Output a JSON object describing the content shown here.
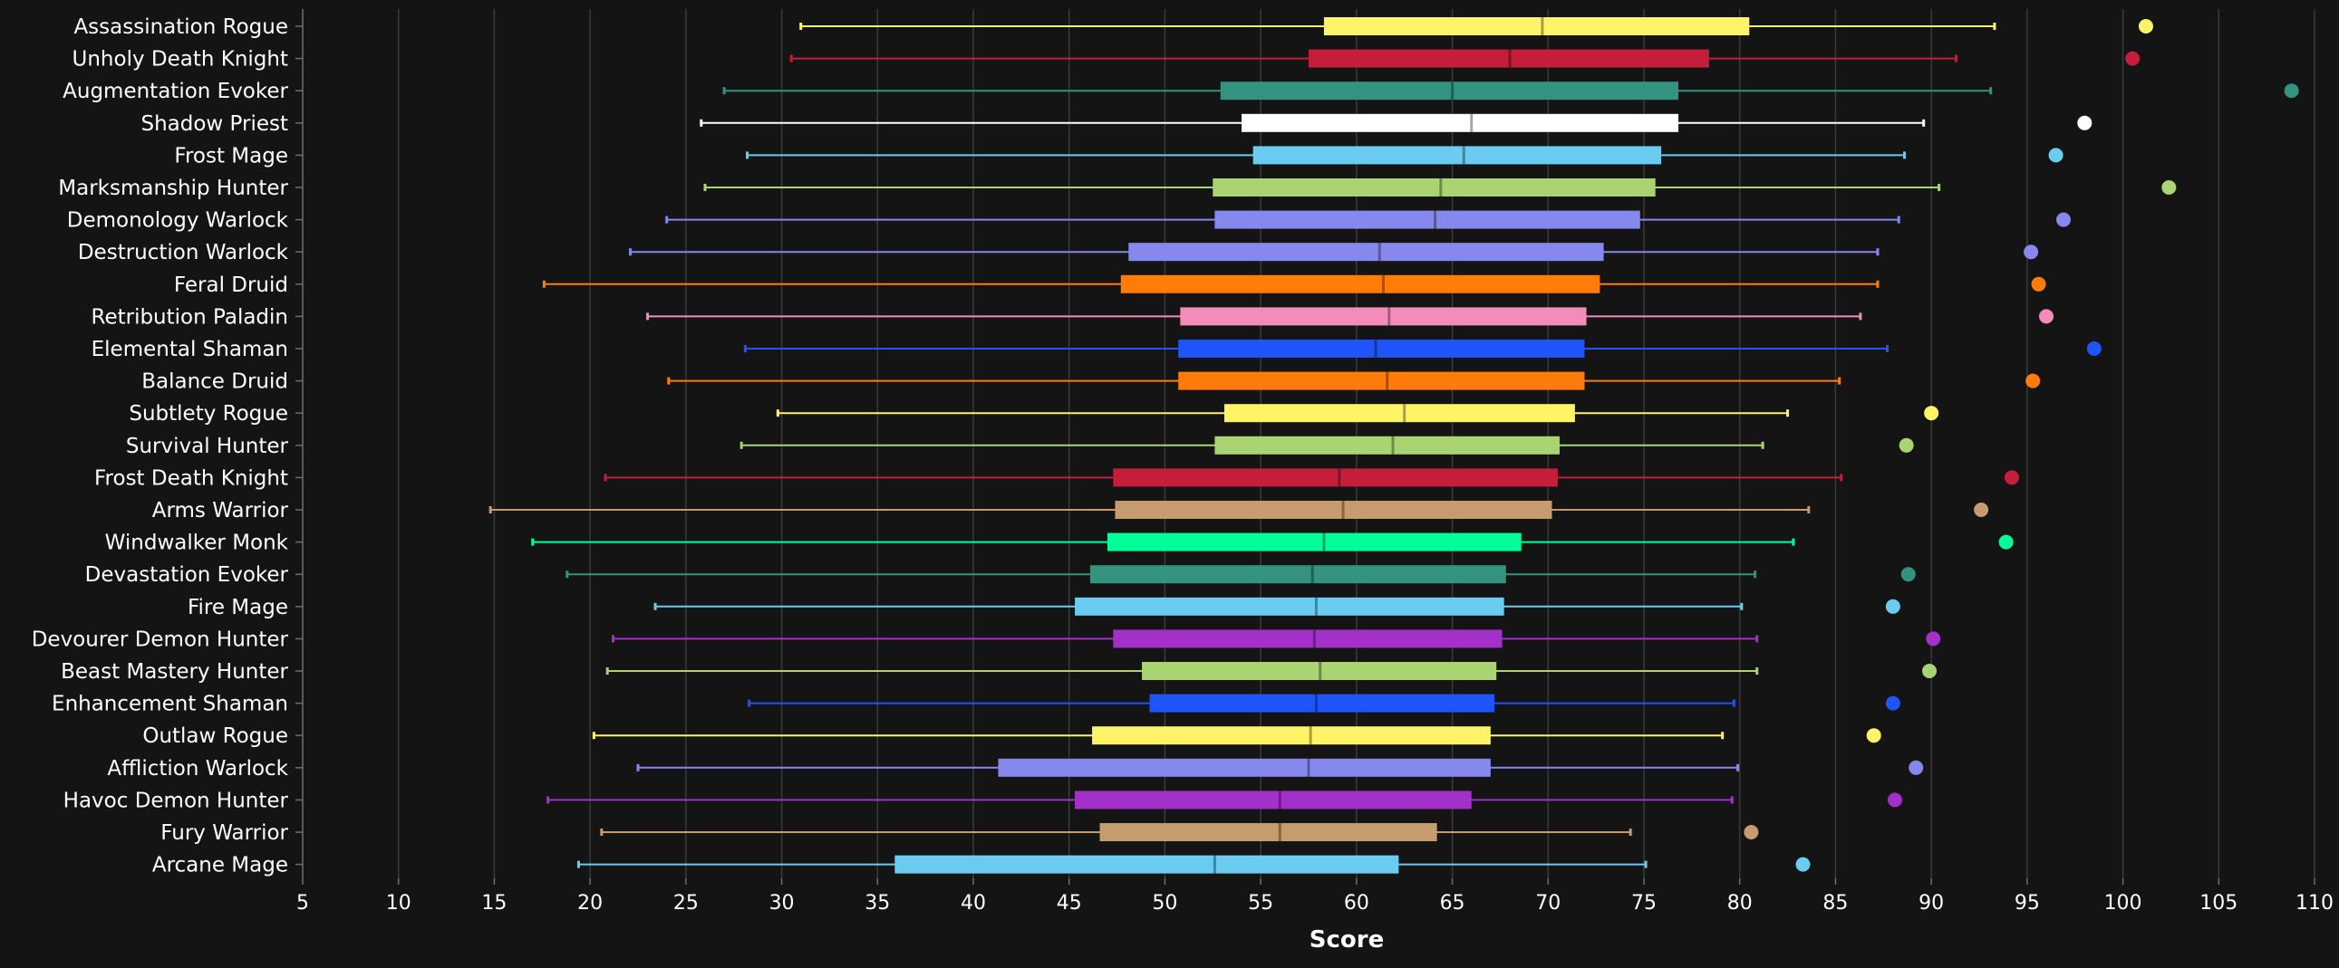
{
  "chart_data": {
    "type": "boxplot",
    "title": "",
    "xlabel": "Score",
    "ylabel": "",
    "xlim": [
      5,
      110
    ],
    "xticks": [
      5,
      10,
      15,
      20,
      25,
      30,
      35,
      40,
      45,
      50,
      55,
      60,
      65,
      70,
      75,
      80,
      85,
      90,
      95,
      100,
      105,
      110
    ],
    "grid": "vertical",
    "legend": "none",
    "series": [
      {
        "name": "Assassination Rogue",
        "color": "#FFF468",
        "min": 31.0,
        "q1": 58.3,
        "median": 69.7,
        "q3": 80.5,
        "max": 93.3,
        "outlier": 101.2
      },
      {
        "name": "Unholy Death Knight",
        "color": "#C41E3A",
        "min": 30.5,
        "q1": 57.5,
        "median": 68.0,
        "q3": 78.4,
        "max": 91.3,
        "outlier": 100.5
      },
      {
        "name": "Augmentation Evoker",
        "color": "#33937F",
        "min": 27.0,
        "q1": 52.9,
        "median": 65.0,
        "q3": 76.8,
        "max": 93.1,
        "outlier": 108.8
      },
      {
        "name": "Shadow Priest",
        "color": "#FFFFFF",
        "min": 25.8,
        "q1": 54.0,
        "median": 66.0,
        "q3": 76.8,
        "max": 89.6,
        "outlier": 98.0
      },
      {
        "name": "Frost Mage",
        "color": "#69CCF0",
        "min": 28.2,
        "q1": 54.6,
        "median": 65.6,
        "q3": 75.9,
        "max": 88.6,
        "outlier": 96.5
      },
      {
        "name": "Marksmanship Hunter",
        "color": "#AAD372",
        "min": 26.0,
        "q1": 52.5,
        "median": 64.4,
        "q3": 75.6,
        "max": 90.4,
        "outlier": 102.4
      },
      {
        "name": "Demonology Warlock",
        "color": "#8788EE",
        "min": 24.0,
        "q1": 52.6,
        "median": 64.1,
        "q3": 74.8,
        "max": 88.3,
        "outlier": 96.9
      },
      {
        "name": "Destruction Warlock",
        "color": "#8788EE",
        "min": 22.1,
        "q1": 48.1,
        "median": 61.2,
        "q3": 72.9,
        "max": 87.2,
        "outlier": 95.2
      },
      {
        "name": "Feral Druid",
        "color": "#FF7C0A",
        "min": 17.6,
        "q1": 47.7,
        "median": 61.4,
        "q3": 72.7,
        "max": 87.2,
        "outlier": 95.6
      },
      {
        "name": "Retribution Paladin",
        "color": "#F48CBA",
        "min": 23.0,
        "q1": 50.8,
        "median": 61.7,
        "q3": 72.0,
        "max": 86.3,
        "outlier": 96.0
      },
      {
        "name": "Elemental Shaman",
        "color": "#1F55F8",
        "min": 28.1,
        "q1": 50.7,
        "median": 61.0,
        "q3": 71.9,
        "max": 87.7,
        "outlier": 98.5
      },
      {
        "name": "Balance Druid",
        "color": "#FF7C0A",
        "min": 24.1,
        "q1": 50.7,
        "median": 61.6,
        "q3": 71.9,
        "max": 85.2,
        "outlier": 95.3
      },
      {
        "name": "Subtlety Rogue",
        "color": "#FFF468",
        "min": 29.8,
        "q1": 53.1,
        "median": 62.5,
        "q3": 71.4,
        "max": 82.5,
        "outlier": 90.0
      },
      {
        "name": "Survival Hunter",
        "color": "#AAD372",
        "min": 27.9,
        "q1": 52.6,
        "median": 61.9,
        "q3": 70.6,
        "max": 81.2,
        "outlier": 88.7
      },
      {
        "name": "Frost Death Knight",
        "color": "#C41E3A",
        "min": 20.8,
        "q1": 47.3,
        "median": 59.1,
        "q3": 70.5,
        "max": 85.3,
        "outlier": 94.2
      },
      {
        "name": "Arms Warrior",
        "color": "#C69B6D",
        "min": 14.8,
        "q1": 47.4,
        "median": 59.3,
        "q3": 70.2,
        "max": 83.6,
        "outlier": 92.6
      },
      {
        "name": "Windwalker Monk",
        "color": "#00FF98",
        "min": 17.0,
        "q1": 47.0,
        "median": 58.3,
        "q3": 68.6,
        "max": 82.8,
        "outlier": 93.9
      },
      {
        "name": "Devastation Evoker",
        "color": "#33937F",
        "min": 18.8,
        "q1": 46.1,
        "median": 57.7,
        "q3": 67.8,
        "max": 80.8,
        "outlier": 88.8
      },
      {
        "name": "Fire Mage",
        "color": "#69CCF0",
        "min": 23.4,
        "q1": 45.3,
        "median": 57.9,
        "q3": 67.7,
        "max": 80.1,
        "outlier": 88.0
      },
      {
        "name": "Devourer Demon Hunter",
        "color": "#A330C9",
        "min": 21.2,
        "q1": 47.3,
        "median": 57.8,
        "q3": 67.6,
        "max": 80.9,
        "outlier": 90.1
      },
      {
        "name": "Beast Mastery Hunter",
        "color": "#AAD372",
        "min": 20.9,
        "q1": 48.8,
        "median": 58.1,
        "q3": 67.3,
        "max": 80.9,
        "outlier": 89.9
      },
      {
        "name": "Enhancement Shaman",
        "color": "#1F55F8",
        "min": 28.3,
        "q1": 49.2,
        "median": 57.9,
        "q3": 67.2,
        "max": 79.7,
        "outlier": 88.0
      },
      {
        "name": "Outlaw Rogue",
        "color": "#FFF468",
        "min": 20.2,
        "q1": 46.2,
        "median": 57.6,
        "q3": 67.0,
        "max": 79.1,
        "outlier": 87.0
      },
      {
        "name": "Affliction Warlock",
        "color": "#8788EE",
        "min": 22.5,
        "q1": 41.3,
        "median": 57.5,
        "q3": 67.0,
        "max": 79.9,
        "outlier": 89.2
      },
      {
        "name": "Havoc Demon Hunter",
        "color": "#A330C9",
        "min": 17.8,
        "q1": 45.3,
        "median": 56.0,
        "q3": 66.0,
        "max": 79.6,
        "outlier": 88.1
      },
      {
        "name": "Fury Warrior",
        "color": "#C69B6D",
        "min": 20.6,
        "q1": 46.6,
        "median": 56.0,
        "q3": 64.2,
        "max": 74.3,
        "outlier": 80.6
      },
      {
        "name": "Arcane Mage",
        "color": "#69CCF0",
        "min": 19.4,
        "q1": 35.9,
        "median": 52.6,
        "q3": 62.2,
        "max": 75.1,
        "outlier": 83.3
      }
    ]
  }
}
